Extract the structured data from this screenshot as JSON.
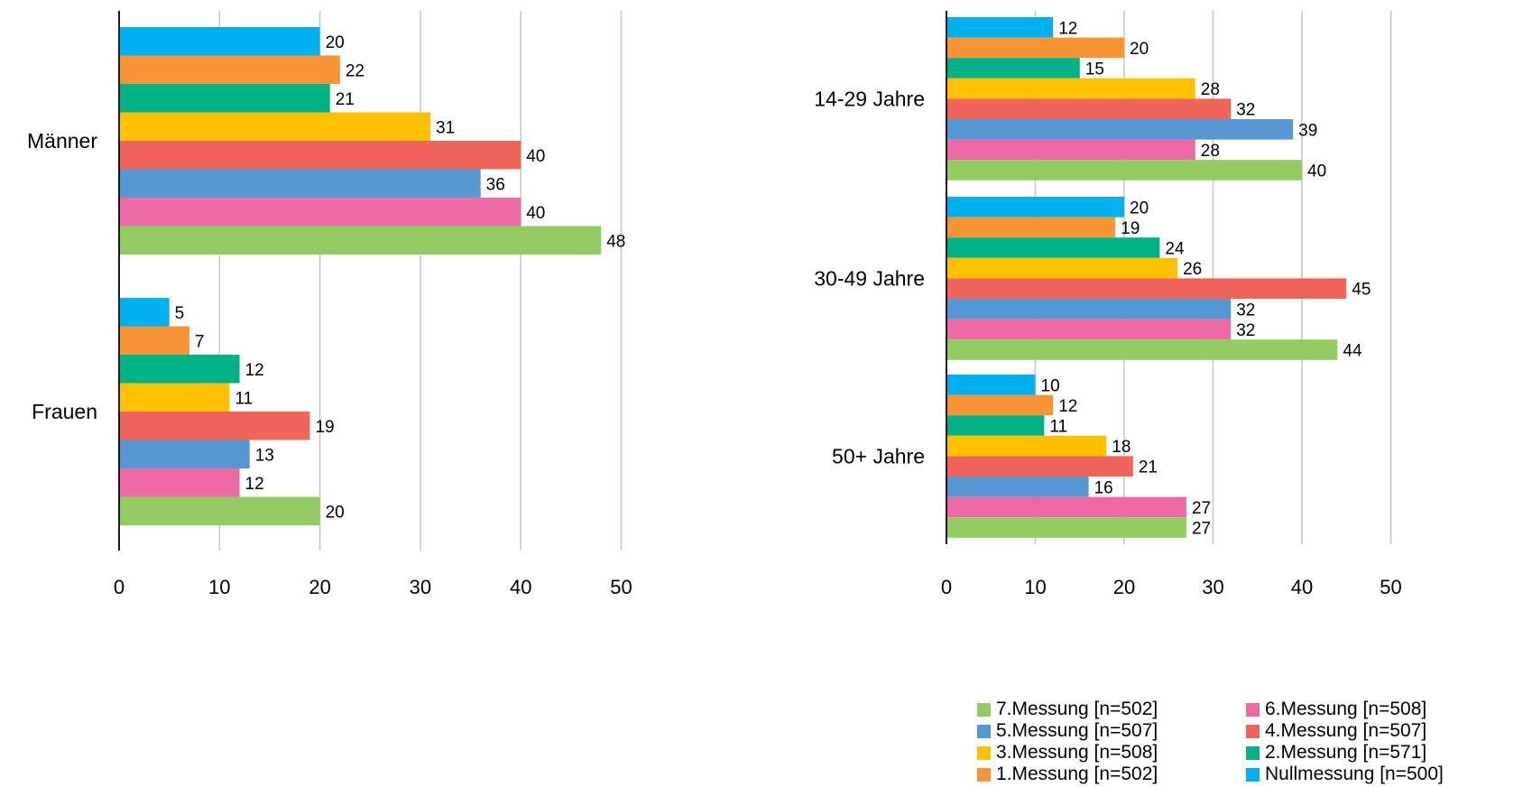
{
  "chart_data": [
    {
      "type": "bar",
      "orientation": "horizontal",
      "title": "",
      "categories": [
        "Männer",
        "Frauen"
      ],
      "xlim": [
        0,
        50
      ],
      "xticks": [
        "0",
        "10",
        "20",
        "30",
        "40",
        "50"
      ],
      "grid": true,
      "series": [
        {
          "name": "Nullmessung [n=500]",
          "color": "#00B0F0",
          "values": [
            20,
            5
          ]
        },
        {
          "name": "1.Messung [n=502]",
          "color": "#F79433",
          "values": [
            22,
            7
          ]
        },
        {
          "name": "2.Messung [n=571]",
          "color": "#00B386",
          "values": [
            21,
            12
          ]
        },
        {
          "name": "3.Messung [n=508]",
          "color": "#FFC000",
          "values": [
            31,
            11
          ]
        },
        {
          "name": "4.Messung [n=507]",
          "color": "#F0655A",
          "values": [
            40,
            19
          ]
        },
        {
          "name": "5.Messung [n=507]",
          "color": "#5698D3",
          "values": [
            36,
            13
          ]
        },
        {
          "name": "6.Messung [n=508]",
          "color": "#EE6AA7",
          "values": [
            40,
            12
          ]
        },
        {
          "name": "7.Messung [n=502]",
          "color": "#92CC62",
          "values": [
            48,
            20
          ]
        }
      ]
    },
    {
      "type": "bar",
      "orientation": "horizontal",
      "title": "",
      "categories": [
        "14-29 Jahre",
        "30-49 Jahre",
        "50+ Jahre"
      ],
      "xlim": [
        0,
        50
      ],
      "xticks": [
        "0",
        "10",
        "20",
        "30",
        "40",
        "50"
      ],
      "grid": true,
      "series": [
        {
          "name": "Nullmessung [n=500]",
          "color": "#00B0F0",
          "values": [
            12,
            20,
            10
          ]
        },
        {
          "name": "1.Messung [n=502]",
          "color": "#F79433",
          "values": [
            20,
            19,
            12
          ]
        },
        {
          "name": "2.Messung [n=571]",
          "color": "#00B386",
          "values": [
            15,
            24,
            11
          ]
        },
        {
          "name": "3.Messung [n=508]",
          "color": "#FFC000",
          "values": [
            28,
            26,
            18
          ]
        },
        {
          "name": "4.Messung [n=507]",
          "color": "#F0655A",
          "values": [
            32,
            45,
            21
          ]
        },
        {
          "name": "5.Messung [n=507]",
          "color": "#5698D3",
          "values": [
            39,
            32,
            16
          ]
        },
        {
          "name": "6.Messung [n=508]",
          "color": "#EE6AA7",
          "values": [
            28,
            32,
            27
          ]
        },
        {
          "name": "7.Messung [n=502]",
          "color": "#92CC62",
          "values": [
            40,
            44,
            27
          ]
        }
      ]
    }
  ],
  "legend": {
    "placement": "bottom-right",
    "items": [
      {
        "label": "7.Messung [n=502]",
        "color": "#92CC62"
      },
      {
        "label": "6.Messung [n=508]",
        "color": "#EE6AA7"
      },
      {
        "label": "5.Messung [n=507]",
        "color": "#5698D3"
      },
      {
        "label": "4.Messung [n=507]",
        "color": "#F0655A"
      },
      {
        "label": "3.Messung [n=508]",
        "color": "#FFC000"
      },
      {
        "label": "2.Messung [n=571]",
        "color": "#00B386"
      },
      {
        "label": "1.Messung [n=502]",
        "color": "#F79433"
      },
      {
        "label": "Nullmessung [n=500]",
        "color": "#00B0F0"
      }
    ]
  }
}
